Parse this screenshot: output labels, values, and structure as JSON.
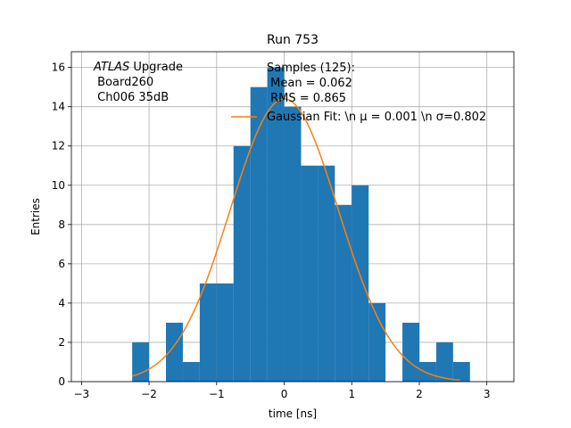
{
  "chart_data": {
    "type": "histogram",
    "title": "Run 753",
    "xlabel": "time [ns]",
    "ylabel": "Entries",
    "xlim": [
      -3.15,
      3.4
    ],
    "ylim": [
      0,
      16.8
    ],
    "grid": true,
    "xticks": [
      -3,
      -2,
      -1,
      0,
      1,
      2,
      3
    ],
    "xtick_labels": [
      "−3",
      "−2",
      "−1",
      "0",
      "1",
      "2",
      "3"
    ],
    "yticks": [
      0,
      2,
      4,
      6,
      8,
      10,
      12,
      14,
      16
    ],
    "ytick_labels": [
      "0",
      "2",
      "4",
      "6",
      "8",
      "10",
      "12",
      "14",
      "16"
    ],
    "histogram": {
      "color": "#1f77b4",
      "bins": [
        {
          "x0": -2.25,
          "x1": -2.0,
          "count": 2
        },
        {
          "x0": -2.0,
          "x1": -1.75,
          "count": 0
        },
        {
          "x0": -1.75,
          "x1": -1.5,
          "count": 3
        },
        {
          "x0": -1.5,
          "x1": -1.25,
          "count": 1
        },
        {
          "x0": -1.25,
          "x1": -1.0,
          "count": 5
        },
        {
          "x0": -1.0,
          "x1": -0.75,
          "count": 5
        },
        {
          "x0": -0.75,
          "x1": -0.5,
          "count": 12
        },
        {
          "x0": -0.5,
          "x1": -0.25,
          "count": 15
        },
        {
          "x0": -0.25,
          "x1": 0.0,
          "count": 16
        },
        {
          "x0": 0.0,
          "x1": 0.25,
          "count": 14
        },
        {
          "x0": 0.25,
          "x1": 0.5,
          "count": 11
        },
        {
          "x0": 0.5,
          "x1": 0.75,
          "count": 11
        },
        {
          "x0": 0.75,
          "x1": 1.0,
          "count": 9
        },
        {
          "x0": 1.0,
          "x1": 1.25,
          "count": 10
        },
        {
          "x0": 1.25,
          "x1": 1.5,
          "count": 4
        },
        {
          "x0": 1.5,
          "x1": 1.75,
          "count": 0
        },
        {
          "x0": 1.75,
          "x1": 2.0,
          "count": 3
        },
        {
          "x0": 2.0,
          "x1": 2.25,
          "count": 1
        },
        {
          "x0": 2.25,
          "x1": 2.5,
          "count": 2
        },
        {
          "x0": 2.5,
          "x1": 2.75,
          "count": 1
        }
      ]
    },
    "fit": {
      "type": "gaussian",
      "color": "#ff7f0e",
      "mu": 0.001,
      "sigma": 0.802,
      "amplitude": 14.4,
      "x_range": [
        -2.25,
        2.6
      ]
    },
    "annotations": {
      "experiment_italic": "ATLAS",
      "experiment_rest": " Upgrade",
      "board": " Board260",
      "channel": " Ch006 35dB"
    },
    "legend": {
      "placement": "top-right",
      "samples_line1": "Samples (125):",
      "samples_line2": " Mean = 0.062",
      "samples_line3": " RMS = 0.865",
      "fit_label": "Gaussian Fit: \\n μ = 0.001 \\n σ=0.802"
    }
  }
}
